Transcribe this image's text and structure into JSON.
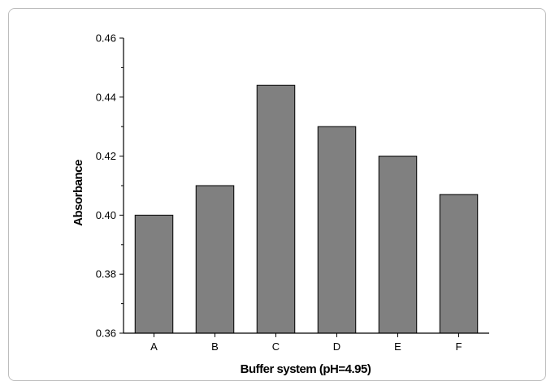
{
  "chart_data": {
    "type": "bar",
    "title": "",
    "xlabel": "Buffer system (pH=4.95)",
    "ylabel": "Absorbance",
    "categories": [
      "A",
      "B",
      "C",
      "D",
      "E",
      "F"
    ],
    "values": [
      0.4,
      0.41,
      0.444,
      0.43,
      0.42,
      0.407
    ],
    "ylim": [
      0.36,
      0.46
    ],
    "yticks": [
      "0.36",
      "0.38",
      "0.40",
      "0.42",
      "0.44",
      "0.46"
    ],
    "grid": false,
    "bar_color": "#808080",
    "bar_edge_color": "#000000"
  }
}
